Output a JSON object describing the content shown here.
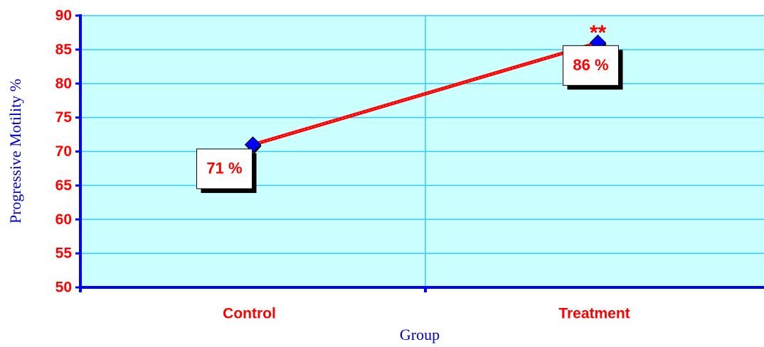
{
  "chart_data": {
    "type": "line",
    "categories": [
      "Control",
      "Treatment"
    ],
    "values": [
      71,
      86
    ],
    "value_labels": [
      "71 %",
      "86 %"
    ],
    "color": "#ff0000",
    "marker_color": "#0000ff",
    "annotations": [
      {
        "text": "**",
        "index": 1
      }
    ],
    "xlabel": "Group",
    "ylabel": "Progressive Motility %",
    "ylim": [
      50,
      90
    ],
    "yticks": [
      50,
      55,
      60,
      65,
      70,
      75,
      80,
      85,
      90
    ],
    "grid": true
  }
}
